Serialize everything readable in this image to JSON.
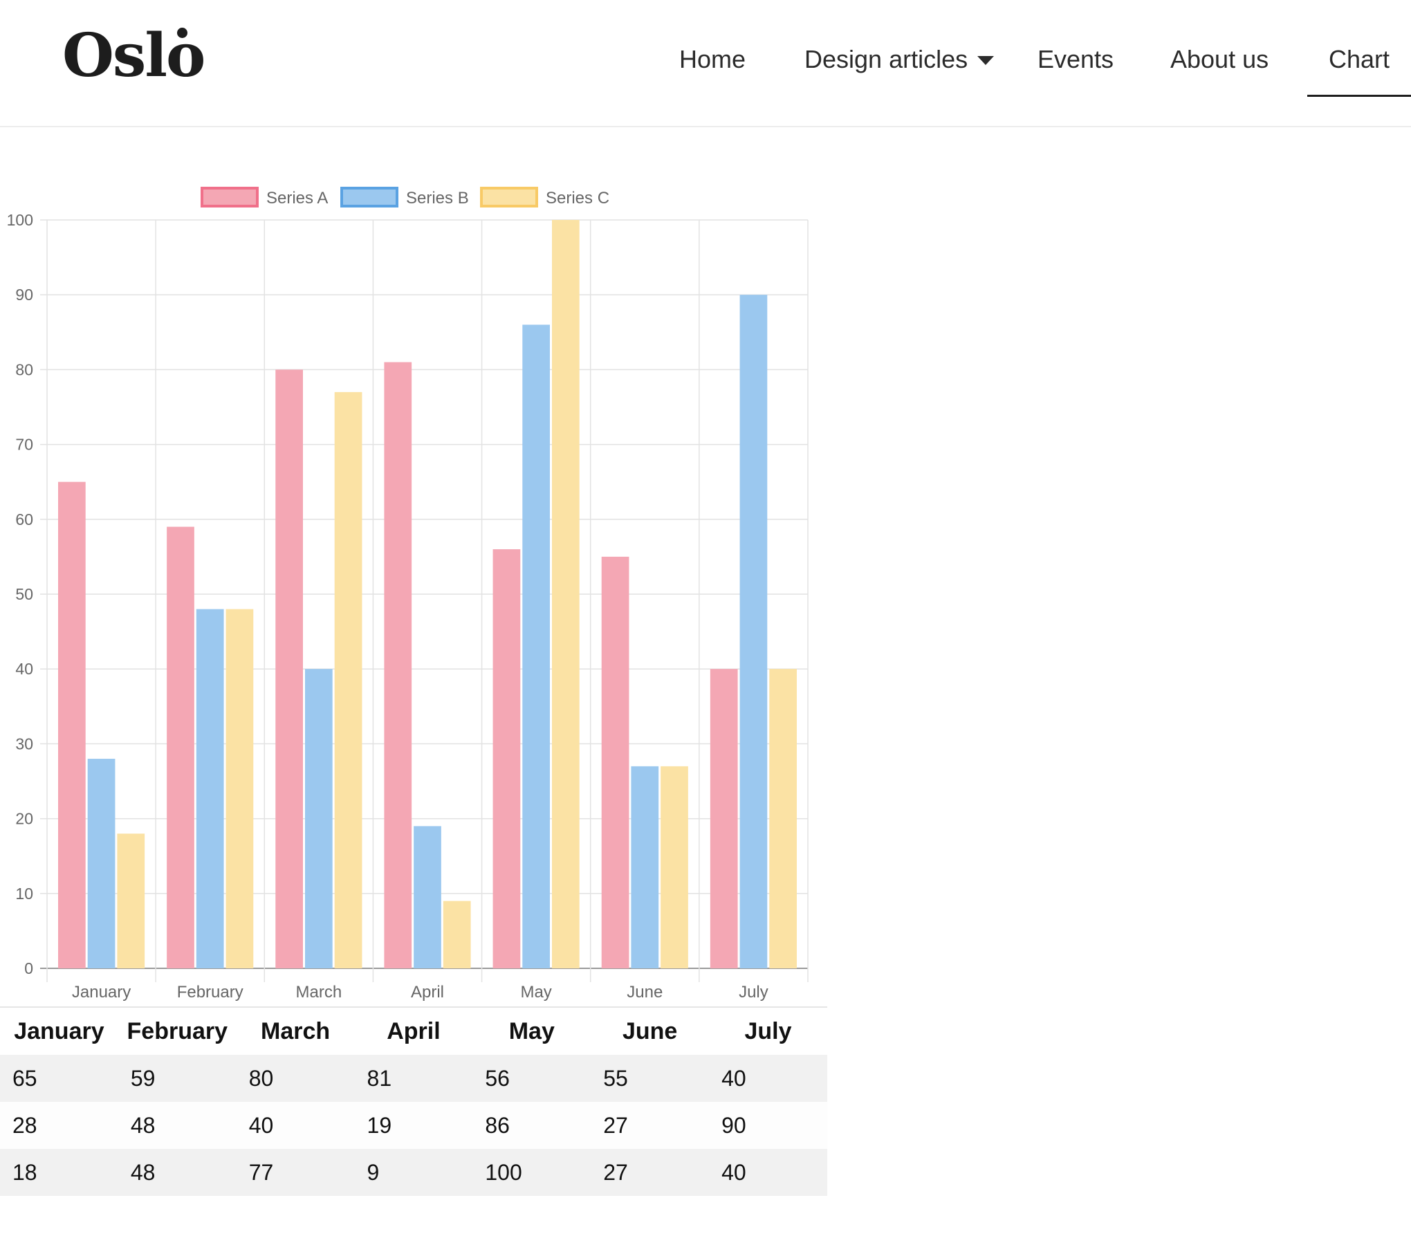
{
  "site": {
    "logo": "Oslo"
  },
  "nav": {
    "items": [
      {
        "label": "Home",
        "active": false
      },
      {
        "label": "Design articles",
        "active": false,
        "has_dropdown": true
      },
      {
        "label": "Events",
        "active": false
      },
      {
        "label": "About us",
        "active": false
      },
      {
        "label": "Chart",
        "active": true
      }
    ]
  },
  "colors": {
    "series_a_fill": "#f4a7b4",
    "series_a_border": "#f0708a",
    "series_b_fill": "#9bc8ef",
    "series_b_border": "#5aa2e2",
    "series_c_fill": "#fbe2a4",
    "series_c_border": "#f8ca66",
    "grid": "#e2e2e2",
    "axis_text": "#666666"
  },
  "chart_data": {
    "type": "bar",
    "categories": [
      "January",
      "February",
      "March",
      "April",
      "May",
      "June",
      "July"
    ],
    "series": [
      {
        "name": "Series A",
        "values": [
          65,
          59,
          80,
          81,
          56,
          55,
          40
        ]
      },
      {
        "name": "Series B",
        "values": [
          28,
          48,
          40,
          19,
          86,
          27,
          90
        ]
      },
      {
        "name": "Series C",
        "values": [
          18,
          48,
          77,
          9,
          100,
          27,
          40
        ]
      }
    ],
    "ylim": [
      0,
      100
    ],
    "yticks": [
      0,
      10,
      20,
      30,
      40,
      50,
      60,
      70,
      80,
      90,
      100
    ],
    "grid": true,
    "legend": "top"
  },
  "table": {
    "headers": [
      "January",
      "February",
      "March",
      "April",
      "May",
      "June",
      "July"
    ],
    "rows": [
      [
        "65",
        "59",
        "80",
        "81",
        "56",
        "55",
        "40"
      ],
      [
        "28",
        "48",
        "40",
        "19",
        "86",
        "27",
        "90"
      ],
      [
        "18",
        "48",
        "77",
        "9",
        "100",
        "27",
        "40"
      ]
    ]
  }
}
